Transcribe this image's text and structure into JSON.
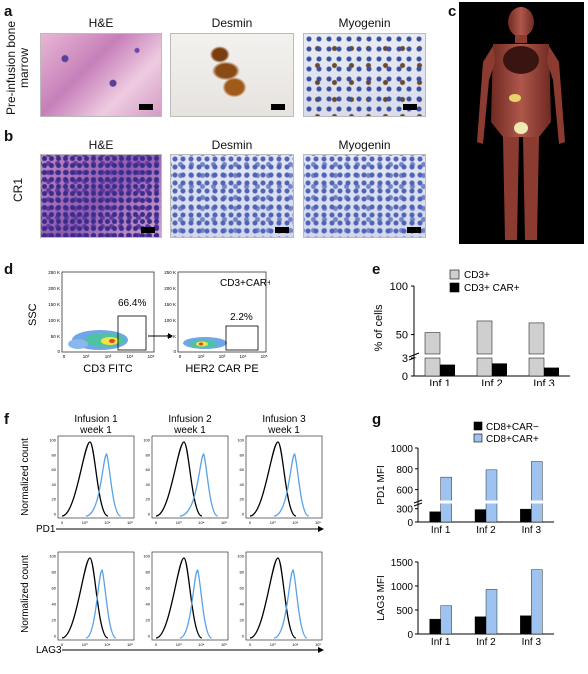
{
  "panels": {
    "a": {
      "letter": "a",
      "row_label": "Pre-infusion bone marrow",
      "stains": [
        "H&E",
        "Desmin",
        "Myogenin"
      ]
    },
    "b": {
      "letter": "b",
      "row_label": "CR1",
      "stains": [
        "H&E",
        "Desmin",
        "Myogenin"
      ]
    },
    "c": {
      "letter": "c"
    },
    "d": {
      "letter": "d",
      "plot1": {
        "ylabel": "SSC",
        "xlabel": "CD3 FITC",
        "gate_pct": "66.4%",
        "yticks": [
          "250 K",
          "200 K",
          "150 K",
          "100 K",
          "50 K",
          "0"
        ],
        "xticks": [
          "0",
          "10²",
          "10³",
          "10⁴",
          "10⁵"
        ]
      },
      "plot2": {
        "title": "CD3+CAR+",
        "xlabel": "HER2 CAR PE",
        "gate_pct": "2.2%",
        "yticks": [
          "250 K",
          "200 K",
          "150 K",
          "100 K",
          "50 K",
          "0"
        ],
        "xticks": [
          "0",
          "10²",
          "10³",
          "10⁴",
          "10⁵"
        ]
      }
    },
    "e": {
      "letter": "e"
    },
    "f": {
      "letter": "f",
      "ylabel": "Normalized count",
      "column_titles": [
        [
          "Infusion 1",
          "week 1"
        ],
        [
          "Infusion 2",
          "week 1"
        ],
        [
          "Infusion 3",
          "week 1"
        ]
      ],
      "row_markers": [
        "PD1",
        "LAG3"
      ],
      "yticks": [
        "100",
        "80",
        "60",
        "40",
        "20",
        "0"
      ],
      "xticks": [
        "0",
        "10³",
        "10⁴",
        "10⁵"
      ]
    },
    "g": {
      "letter": "g"
    }
  },
  "chart_data": [
    {
      "id": "e",
      "type": "bar",
      "categories": [
        "Inf 1",
        "Inf 2",
        "Inf 3"
      ],
      "series": [
        {
          "name": "CD3+",
          "values": [
            52,
            64,
            62
          ],
          "color": "#cfcfcf"
        },
        {
          "name": "CD3+ CAR+",
          "values": [
            1.9,
            2.1,
            1.4
          ],
          "color": "#000000"
        }
      ],
      "ylabel": "% of cells",
      "yticks": [
        "0",
        "3",
        "50",
        "100"
      ],
      "ylim": [
        0,
        100
      ],
      "axis_break": [
        3,
        30
      ],
      "legend": "top"
    },
    {
      "id": "g-pd1",
      "type": "bar",
      "categories": [
        "Inf 1",
        "Inf 2",
        "Inf 3"
      ],
      "series": [
        {
          "name": "CD8+CAR−",
          "values": [
            230,
            280,
            290
          ],
          "color": "#000000"
        },
        {
          "name": "CD8+CAR+",
          "values": [
            720,
            790,
            870
          ],
          "color": "#9ec3f0"
        }
      ],
      "ylabel": "PD1 MFI",
      "yticks": [
        "0",
        "300",
        "600",
        "800",
        "1000"
      ],
      "ylim": [
        0,
        1000
      ],
      "axis_break": [
        450,
        500
      ],
      "legend": "top-right"
    },
    {
      "id": "g-lag3",
      "type": "bar",
      "categories": [
        "Inf 1",
        "Inf 2",
        "Inf 3"
      ],
      "series": [
        {
          "name": "CD8+CAR−",
          "values": [
            310,
            360,
            380
          ],
          "color": "#000000"
        },
        {
          "name": "CD8+CAR+",
          "values": [
            590,
            930,
            1340
          ],
          "color": "#9ec3f0"
        }
      ],
      "ylabel": "LAG3 MFI",
      "yticks": [
        "0",
        "500",
        "1000",
        "1500"
      ],
      "ylim": [
        0,
        1500
      ]
    }
  ]
}
